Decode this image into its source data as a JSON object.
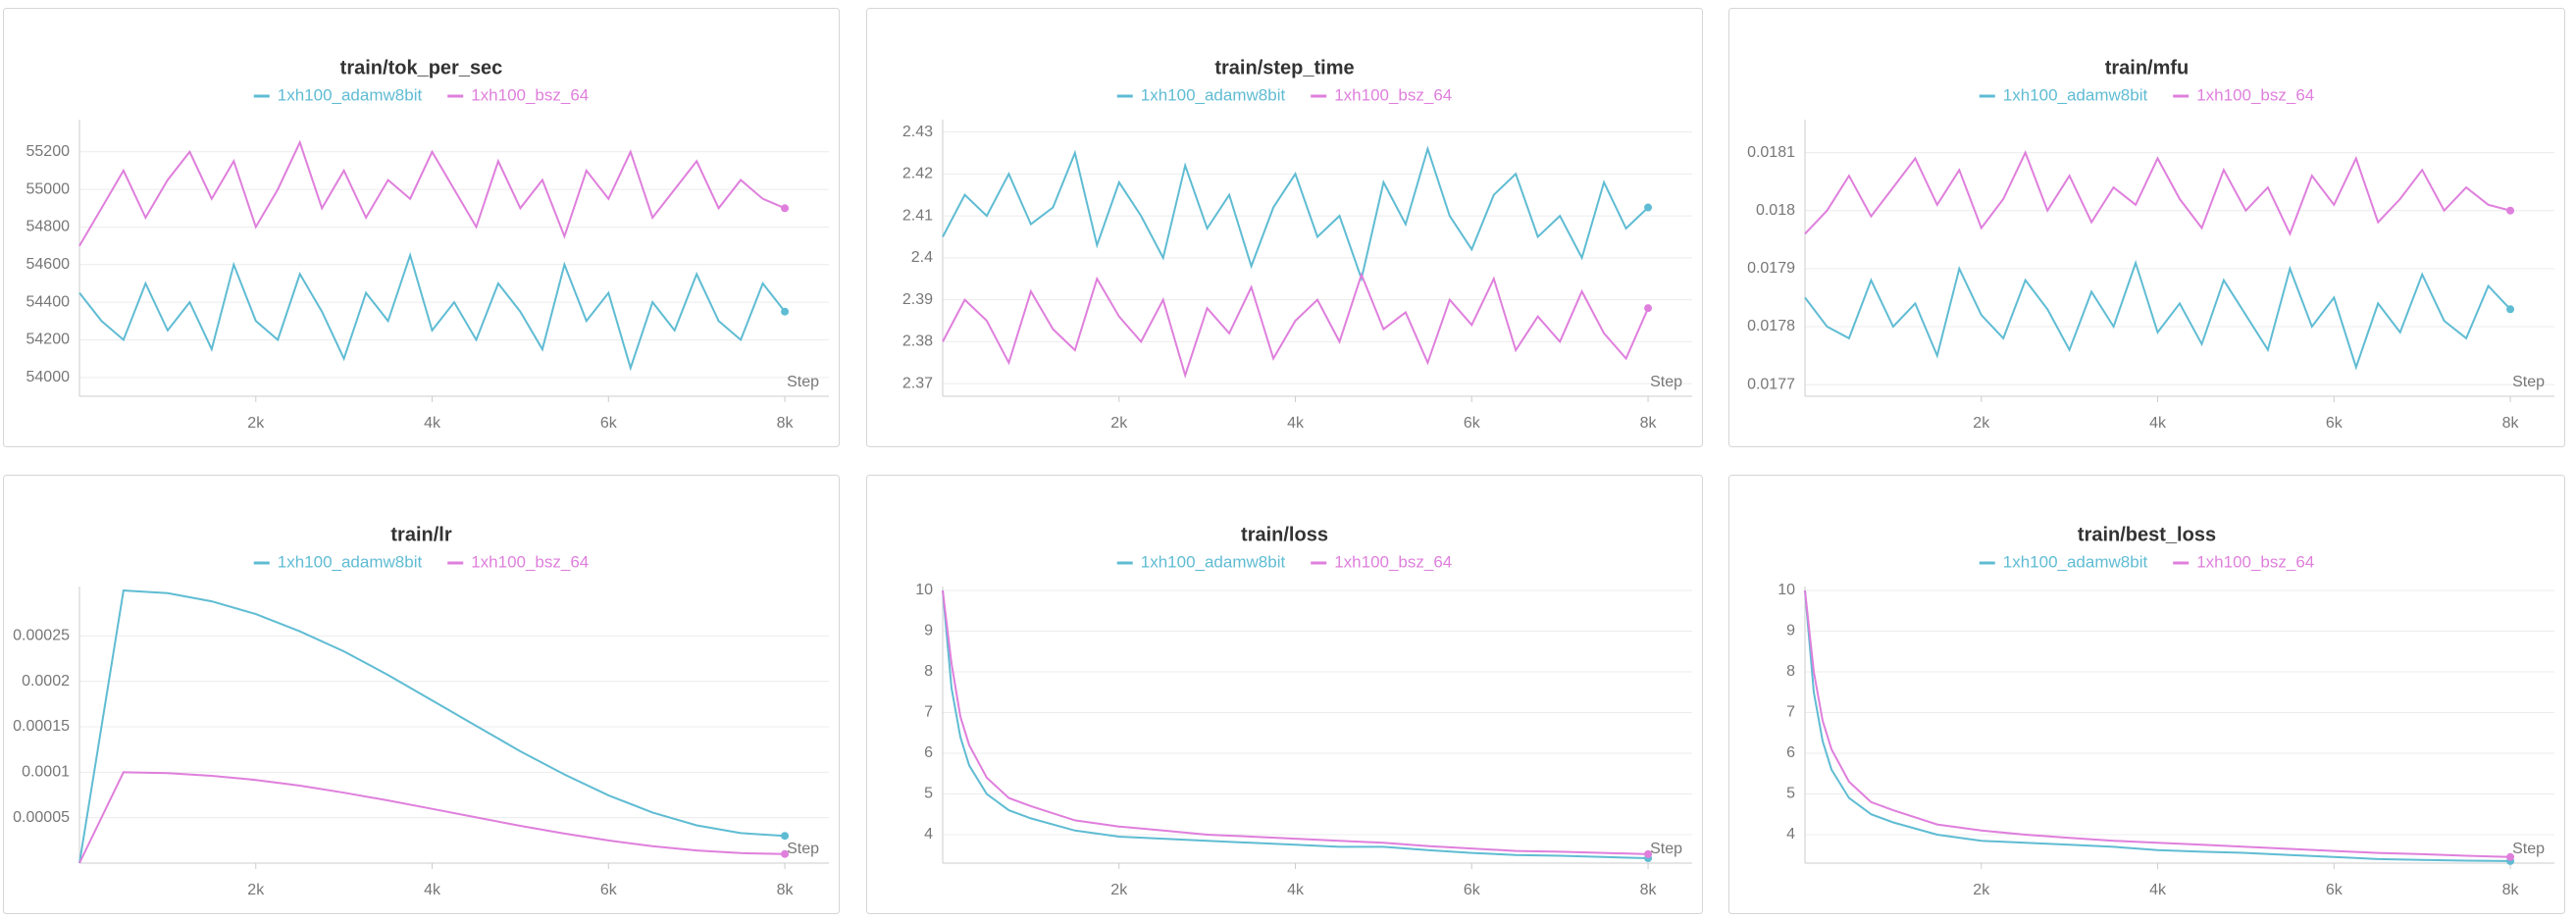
{
  "chart_data": [
    {
      "type": "line",
      "title": "train/tok_per_sec",
      "x_label": "Step",
      "x": [
        0,
        250,
        500,
        750,
        1000,
        1250,
        1500,
        1750,
        2000,
        2250,
        2500,
        2750,
        3000,
        3250,
        3500,
        3750,
        4000,
        4250,
        4500,
        4750,
        5000,
        5250,
        5500,
        5750,
        6000,
        6250,
        6500,
        6750,
        7000,
        7250,
        7500,
        7750,
        8000
      ],
      "series": [
        {
          "name": "1xh100_adamw8bit",
          "color": "#5fbcd3",
          "values": [
            54450,
            54300,
            54200,
            54500,
            54250,
            54400,
            54150,
            54600,
            54300,
            54200,
            54550,
            54350,
            54100,
            54450,
            54300,
            54650,
            54250,
            54400,
            54200,
            54500,
            54350,
            54150,
            54600,
            54300,
            54450,
            54050,
            54400,
            54250,
            54550,
            54300,
            54200,
            54500,
            54350
          ]
        },
        {
          "name": "1xh100_bsz_64",
          "color": "#df7fdc",
          "values": [
            54700,
            54900,
            55100,
            54850,
            55050,
            55200,
            54950,
            55150,
            54800,
            55000,
            55250,
            54900,
            55100,
            54850,
            55050,
            54950,
            55200,
            55000,
            54800,
            55150,
            54900,
            55050,
            54750,
            55100,
            54950,
            55200,
            54850,
            55000,
            55150,
            54900,
            55050,
            54950,
            54900
          ]
        }
      ],
      "xlim": [
        0,
        8500
      ],
      "xticks": [
        {
          "value": 2000,
          "label": "2k"
        },
        {
          "value": 4000,
          "label": "4k"
        },
        {
          "value": 6000,
          "label": "6k"
        },
        {
          "value": 8000,
          "label": "8k"
        }
      ],
      "ylim": [
        53900,
        55350
      ],
      "yticks": [
        54000,
        54200,
        54400,
        54600,
        54800,
        55000,
        55200
      ],
      "grid": true
    },
    {
      "type": "line",
      "title": "train/step_time",
      "x_label": "Step",
      "x": [
        0,
        250,
        500,
        750,
        1000,
        1250,
        1500,
        1750,
        2000,
        2250,
        2500,
        2750,
        3000,
        3250,
        3500,
        3750,
        4000,
        4250,
        4500,
        4750,
        5000,
        5250,
        5500,
        5750,
        6000,
        6250,
        6500,
        6750,
        7000,
        7250,
        7500,
        7750,
        8000
      ],
      "series": [
        {
          "name": "1xh100_adamw8bit",
          "color": "#5fbcd3",
          "values": [
            2.405,
            2.415,
            2.41,
            2.42,
            2.408,
            2.412,
            2.425,
            2.403,
            2.418,
            2.41,
            2.4,
            2.422,
            2.407,
            2.415,
            2.398,
            2.412,
            2.42,
            2.405,
            2.41,
            2.395,
            2.418,
            2.408,
            2.426,
            2.41,
            2.402,
            2.415,
            2.42,
            2.405,
            2.41,
            2.4,
            2.418,
            2.407,
            2.412
          ]
        },
        {
          "name": "1xh100_bsz_64",
          "color": "#df7fdc",
          "values": [
            2.38,
            2.39,
            2.385,
            2.375,
            2.392,
            2.383,
            2.378,
            2.395,
            2.386,
            2.38,
            2.39,
            2.372,
            2.388,
            2.382,
            2.393,
            2.376,
            2.385,
            2.39,
            2.38,
            2.396,
            2.383,
            2.387,
            2.375,
            2.39,
            2.384,
            2.395,
            2.378,
            2.386,
            2.38,
            2.392,
            2.382,
            2.376,
            2.388
          ]
        }
      ],
      "xlim": [
        0,
        8500
      ],
      "xticks": [
        {
          "value": 2000,
          "label": "2k"
        },
        {
          "value": 4000,
          "label": "4k"
        },
        {
          "value": 6000,
          "label": "6k"
        },
        {
          "value": 8000,
          "label": "8k"
        }
      ],
      "ylim": [
        2.367,
        2.432
      ],
      "yticks": [
        2.37,
        2.38,
        2.39,
        2.4,
        2.41,
        2.42,
        2.43
      ],
      "grid": true
    },
    {
      "type": "line",
      "title": "train/mfu",
      "x_label": "Step",
      "x": [
        0,
        250,
        500,
        750,
        1000,
        1250,
        1500,
        1750,
        2000,
        2250,
        2500,
        2750,
        3000,
        3250,
        3500,
        3750,
        4000,
        4250,
        4500,
        4750,
        5000,
        5250,
        5500,
        5750,
        6000,
        6250,
        6500,
        6750,
        7000,
        7250,
        7500,
        7750,
        8000
      ],
      "series": [
        {
          "name": "1xh100_adamw8bit",
          "color": "#5fbcd3",
          "values": [
            0.01785,
            0.0178,
            0.01778,
            0.01788,
            0.0178,
            0.01784,
            0.01775,
            0.0179,
            0.01782,
            0.01778,
            0.01788,
            0.01783,
            0.01776,
            0.01786,
            0.0178,
            0.01791,
            0.01779,
            0.01784,
            0.01777,
            0.01788,
            0.01782,
            0.01776,
            0.0179,
            0.0178,
            0.01785,
            0.01773,
            0.01784,
            0.01779,
            0.01789,
            0.01781,
            0.01778,
            0.01787,
            0.01783
          ]
        },
        {
          "name": "1xh100_bsz_64",
          "color": "#df7fdc",
          "values": [
            0.01796,
            0.018,
            0.01806,
            0.01799,
            0.01804,
            0.01809,
            0.01801,
            0.01807,
            0.01797,
            0.01802,
            0.0181,
            0.018,
            0.01806,
            0.01798,
            0.01804,
            0.01801,
            0.01809,
            0.01802,
            0.01797,
            0.01807,
            0.018,
            0.01804,
            0.01796,
            0.01806,
            0.01801,
            0.01809,
            0.01798,
            0.01802,
            0.01807,
            0.018,
            0.01804,
            0.01801,
            0.018
          ]
        }
      ],
      "xlim": [
        0,
        8500
      ],
      "xticks": [
        {
          "value": 2000,
          "label": "2k"
        },
        {
          "value": 4000,
          "label": "4k"
        },
        {
          "value": 6000,
          "label": "6k"
        },
        {
          "value": 8000,
          "label": "8k"
        }
      ],
      "ylim": [
        0.01768,
        0.01815
      ],
      "yticks": [
        0.0177,
        0.0178,
        0.0179,
        0.018,
        0.0181
      ],
      "grid": true
    },
    {
      "type": "line",
      "title": "train/lr",
      "x_label": "Step",
      "x": [
        0,
        500,
        1000,
        1500,
        2000,
        2500,
        3000,
        3500,
        4000,
        4500,
        5000,
        5500,
        6000,
        6500,
        7000,
        7500,
        8000
      ],
      "series": [
        {
          "name": "1xh100_adamw8bit",
          "color": "#5fbcd3",
          "values": [
            0,
            0.0003,
            0.000297,
            0.000288,
            0.000274,
            0.000255,
            0.000233,
            0.000207,
            0.000179,
            0.000151,
            0.000123,
            9.75e-05,
            7.46e-05,
            5.57e-05,
            4.16e-05,
            3.3e-05,
            3e-05
          ]
        },
        {
          "name": "1xh100_bsz_64",
          "color": "#df7fdc",
          "values": [
            0,
            0.0001,
            9.9e-05,
            9.6e-05,
            9.15e-05,
            8.52e-05,
            7.75e-05,
            6.9e-05,
            5.97e-05,
            5.03e-05,
            4.1e-05,
            3.25e-05,
            2.49e-05,
            1.86e-05,
            1.39e-05,
            1.1e-05,
            1e-05
          ]
        }
      ],
      "xlim": [
        0,
        8500
      ],
      "xticks": [
        {
          "value": 2000,
          "label": "2k"
        },
        {
          "value": 4000,
          "label": "4k"
        },
        {
          "value": 6000,
          "label": "6k"
        },
        {
          "value": 8000,
          "label": "8k"
        }
      ],
      "ylim": [
        0,
        0.0003
      ],
      "yticks": [
        5e-05,
        0.0001,
        0.00015,
        0.0002,
        0.00025
      ],
      "grid": true
    },
    {
      "type": "line",
      "title": "train/loss",
      "x_label": "Step",
      "x": [
        0,
        100,
        200,
        300,
        500,
        750,
        1000,
        1500,
        2000,
        2500,
        3000,
        3500,
        4000,
        4500,
        5000,
        5500,
        6000,
        6500,
        7000,
        7500,
        8000
      ],
      "series": [
        {
          "name": "1xh100_adamw8bit",
          "color": "#5fbcd3",
          "values": [
            10,
            7.6,
            6.4,
            5.7,
            5.0,
            4.6,
            4.4,
            4.1,
            3.95,
            3.9,
            3.85,
            3.8,
            3.75,
            3.7,
            3.7,
            3.62,
            3.55,
            3.5,
            3.48,
            3.45,
            3.42
          ]
        },
        {
          "name": "1xh100_bsz_64",
          "color": "#df7fdc",
          "values": [
            10,
            8.2,
            6.9,
            6.2,
            5.4,
            4.9,
            4.7,
            4.35,
            4.2,
            4.1,
            4.0,
            3.95,
            3.9,
            3.85,
            3.8,
            3.72,
            3.66,
            3.6,
            3.58,
            3.55,
            3.52
          ]
        }
      ],
      "xlim": [
        0,
        8500
      ],
      "xticks": [
        {
          "value": 2000,
          "label": "2k"
        },
        {
          "value": 4000,
          "label": "4k"
        },
        {
          "value": 6000,
          "label": "6k"
        },
        {
          "value": 8000,
          "label": "8k"
        }
      ],
      "ylim": [
        3.3,
        10
      ],
      "yticks": [
        4,
        5,
        6,
        7,
        8,
        9,
        10
      ],
      "grid": true
    },
    {
      "type": "line",
      "title": "train/best_loss",
      "x_label": "Step",
      "x": [
        0,
        100,
        200,
        300,
        500,
        750,
        1000,
        1500,
        2000,
        2500,
        3000,
        3500,
        4000,
        4500,
        5000,
        5500,
        6000,
        6500,
        7000,
        7500,
        8000
      ],
      "series": [
        {
          "name": "1xh100_adamw8bit",
          "color": "#5fbcd3",
          "values": [
            10,
            7.5,
            6.3,
            5.6,
            4.9,
            4.5,
            4.3,
            4.0,
            3.85,
            3.8,
            3.75,
            3.7,
            3.62,
            3.58,
            3.55,
            3.5,
            3.45,
            3.4,
            3.38,
            3.36,
            3.35
          ]
        },
        {
          "name": "1xh100_bsz_64",
          "color": "#df7fdc",
          "values": [
            10,
            8.0,
            6.8,
            6.1,
            5.3,
            4.8,
            4.6,
            4.25,
            4.1,
            4.0,
            3.92,
            3.85,
            3.8,
            3.75,
            3.7,
            3.65,
            3.6,
            3.55,
            3.52,
            3.48,
            3.45
          ]
        }
      ],
      "xlim": [
        0,
        8500
      ],
      "xticks": [
        {
          "value": 2000,
          "label": "2k"
        },
        {
          "value": 4000,
          "label": "4k"
        },
        {
          "value": 6000,
          "label": "6k"
        },
        {
          "value": 8000,
          "label": "8k"
        }
      ],
      "ylim": [
        3.3,
        10
      ],
      "yticks": [
        4,
        5,
        6,
        7,
        8,
        9,
        10
      ],
      "grid": true
    }
  ]
}
